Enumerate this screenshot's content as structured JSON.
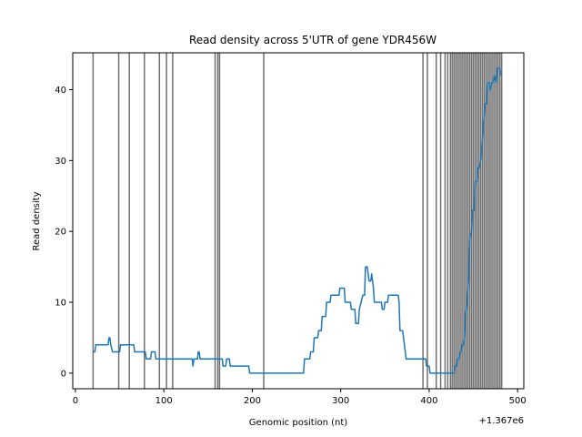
{
  "chart_data": {
    "type": "line",
    "title": "Read density across 5'UTR of gene YDR456W",
    "xlabel": "Genomic position (nt)",
    "ylabel": "Read density",
    "x_offset_label": "+1.367e6",
    "xlim": [
      -3,
      507
    ],
    "ylim": [
      -2.2,
      45.2
    ],
    "x_ticks": [
      0,
      100,
      200,
      300,
      400,
      500
    ],
    "y_ticks": [
      0,
      10,
      20,
      30,
      40
    ],
    "grid": false,
    "legend": "none",
    "colors": {
      "line": "#1f77b4",
      "vline": "#404040"
    },
    "series": [
      {
        "points": [
          [
            20,
            3
          ],
          [
            22,
            3
          ],
          [
            23,
            4
          ],
          [
            37,
            4
          ],
          [
            38,
            5
          ],
          [
            39,
            5
          ],
          [
            40,
            4
          ],
          [
            42,
            3
          ],
          [
            50,
            3
          ],
          [
            51,
            4
          ],
          [
            66,
            4
          ],
          [
            67,
            3
          ],
          [
            79,
            3
          ],
          [
            80,
            2
          ],
          [
            85,
            2
          ],
          [
            86,
            3
          ],
          [
            90,
            3
          ],
          [
            91,
            2
          ],
          [
            132,
            2
          ],
          [
            133,
            1
          ],
          [
            134,
            2
          ],
          [
            138,
            2
          ],
          [
            139,
            3
          ],
          [
            140,
            3
          ],
          [
            141,
            2
          ],
          [
            166,
            2
          ],
          [
            167,
            1
          ],
          [
            170,
            1
          ],
          [
            171,
            2
          ],
          [
            174,
            2
          ],
          [
            175,
            1
          ],
          [
            196,
            1
          ],
          [
            197,
            0
          ],
          [
            258,
            0
          ],
          [
            259,
            2
          ],
          [
            265,
            2
          ],
          [
            266,
            3
          ],
          [
            269,
            3
          ],
          [
            270,
            5
          ],
          [
            274,
            5
          ],
          [
            275,
            6
          ],
          [
            278,
            6
          ],
          [
            279,
            8
          ],
          [
            283,
            8
          ],
          [
            284,
            10
          ],
          [
            288,
            10
          ],
          [
            289,
            11
          ],
          [
            298,
            11
          ],
          [
            299,
            12
          ],
          [
            304,
            12
          ],
          [
            305,
            10
          ],
          [
            311,
            10
          ],
          [
            312,
            9
          ],
          [
            316,
            9
          ],
          [
            317,
            7
          ],
          [
            320,
            7
          ],
          [
            321,
            9
          ],
          [
            325,
            11
          ],
          [
            327,
            11
          ],
          [
            328,
            15
          ],
          [
            330,
            15
          ],
          [
            331,
            14
          ],
          [
            332,
            13
          ],
          [
            334,
            13
          ],
          [
            335,
            14
          ],
          [
            337,
            12
          ],
          [
            338,
            10
          ],
          [
            346,
            10
          ],
          [
            347,
            9
          ],
          [
            349,
            9
          ],
          [
            350,
            10
          ],
          [
            353,
            10
          ],
          [
            354,
            11
          ],
          [
            365,
            11
          ],
          [
            366,
            10
          ],
          [
            367,
            6
          ],
          [
            370,
            6
          ],
          [
            371,
            5
          ],
          [
            372,
            4
          ],
          [
            374,
            2
          ],
          [
            396,
            2
          ],
          [
            397,
            1
          ],
          [
            400,
            1
          ],
          [
            401,
            0
          ],
          [
            428,
            0
          ],
          [
            429,
            1
          ],
          [
            431,
            1
          ],
          [
            432,
            2
          ],
          [
            434,
            2
          ],
          [
            435,
            3
          ],
          [
            436,
            3
          ],
          [
            437,
            4
          ],
          [
            439,
            4
          ],
          [
            440,
            5
          ],
          [
            441,
            8
          ],
          [
            443,
            10
          ],
          [
            445,
            14
          ],
          [
            446,
            19
          ],
          [
            448,
            20
          ],
          [
            449,
            23
          ],
          [
            451,
            23
          ],
          [
            452,
            27
          ],
          [
            454,
            27
          ],
          [
            455,
            29
          ],
          [
            457,
            29
          ],
          [
            458,
            30
          ],
          [
            459,
            31
          ],
          [
            460,
            33
          ],
          [
            461,
            35
          ],
          [
            462,
            36
          ],
          [
            463,
            38
          ],
          [
            465,
            38
          ],
          [
            466,
            41
          ],
          [
            468,
            41
          ],
          [
            469,
            40
          ],
          [
            471,
            41
          ],
          [
            472,
            41
          ],
          [
            474,
            42
          ],
          [
            476,
            41
          ],
          [
            477,
            43
          ],
          [
            480,
            43
          ],
          [
            481,
            42
          ]
        ]
      }
    ],
    "vertical_lines": [
      20,
      49,
      61,
      78,
      95,
      103,
      110,
      158,
      161,
      163,
      213,
      393,
      398,
      408,
      413,
      418,
      421,
      424,
      426,
      428,
      430,
      432,
      434,
      436,
      438,
      440,
      442,
      444,
      446,
      448,
      450,
      452,
      454,
      456,
      458,
      460,
      462,
      464,
      466,
      468,
      470,
      472,
      474,
      476,
      478,
      480,
      482
    ]
  }
}
